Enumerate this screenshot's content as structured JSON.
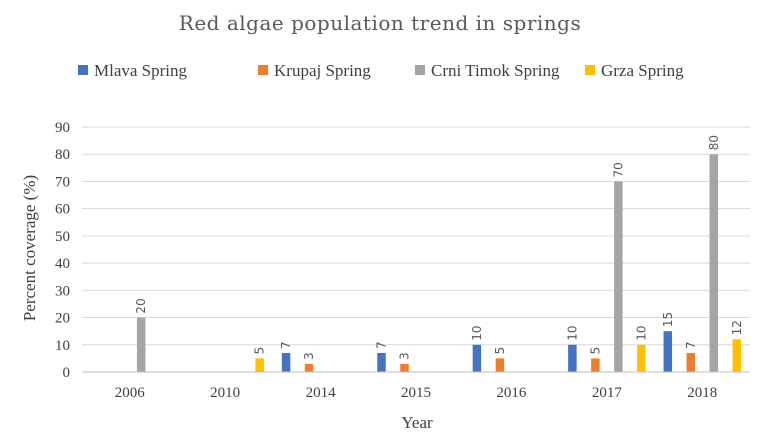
{
  "chart_data": {
    "type": "bar",
    "title": "Red algae population trend in springs",
    "xlabel": "Year",
    "ylabel": "Percent coverage (%)",
    "ylim": [
      0,
      90
    ],
    "yticks": [
      0,
      10,
      20,
      30,
      40,
      50,
      60,
      70,
      80,
      90
    ],
    "grid": true,
    "legend_position": "top",
    "categories": [
      "2006",
      "2010",
      "2014",
      "2015",
      "2016",
      "2017",
      "2018"
    ],
    "series": [
      {
        "name": "Mlava Spring",
        "color": "#4472c4",
        "values": [
          null,
          null,
          7,
          7,
          10,
          10,
          15
        ]
      },
      {
        "name": "Krupaj Spring",
        "color": "#ed7d31",
        "values": [
          null,
          null,
          3,
          3,
          5,
          5,
          7
        ]
      },
      {
        "name": "Crni Timok Spring",
        "color": "#a5a5a5",
        "values": [
          20,
          null,
          null,
          null,
          null,
          70,
          80
        ]
      },
      {
        "name": "Grza Spring",
        "color": "#ffc000",
        "values": [
          null,
          5,
          null,
          null,
          null,
          10,
          12
        ]
      }
    ]
  }
}
